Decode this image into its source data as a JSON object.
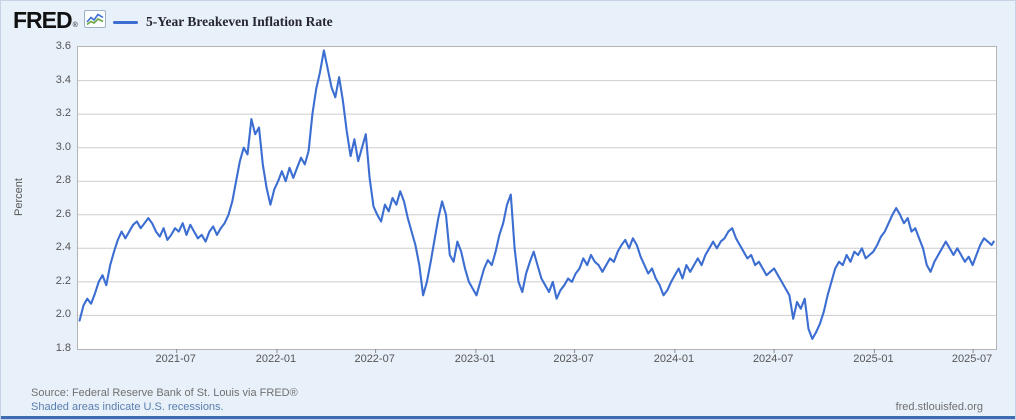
{
  "header": {
    "logo_text": "FRED",
    "registered_mark": "®",
    "legend": {
      "label": "5-Year Breakeven Inflation Rate"
    }
  },
  "footer": {
    "source_line": "Source: Federal Reserve Bank of St. Louis via FRED®",
    "recessions_note": "Shaded areas indicate U.S. recessions.",
    "site_link": "fred.stlouisfed.org"
  },
  "colors": {
    "line": "#3c6ed2",
    "accent_bar": "#3e6cb0",
    "link": "#5a7fae",
    "chrome_background": "#e8f0fa",
    "gridline": "#cdcdcd",
    "axis_text": "#555555"
  },
  "chart_data": {
    "type": "line",
    "title": "5-Year Breakeven Inflation Rate",
    "ylabel": "Percent",
    "xlabel": "",
    "ylim": [
      1.8,
      3.6
    ],
    "yticks": [
      1.8,
      2.0,
      2.2,
      2.4,
      2.6,
      2.8,
      3.0,
      3.2,
      3.4,
      3.6
    ],
    "xticks": [
      "2021-07",
      "2022-01",
      "2022-07",
      "2023-01",
      "2023-07",
      "2024-01",
      "2024-07",
      "2025-01",
      "2025-07"
    ],
    "x_range": [
      "2021-01-01",
      "2025-08-12"
    ],
    "grid": true,
    "legend_position": "top-left",
    "line_color": "#3c6ed2",
    "series_name": "5-Year Breakeven Inflation Rate",
    "points": [
      [
        "2021-01-04",
        1.97
      ],
      [
        "2021-01-11",
        2.06
      ],
      [
        "2021-01-18",
        2.1
      ],
      [
        "2021-01-25",
        2.07
      ],
      [
        "2021-02-01",
        2.13
      ],
      [
        "2021-02-08",
        2.2
      ],
      [
        "2021-02-15",
        2.24
      ],
      [
        "2021-02-22",
        2.18
      ],
      [
        "2021-03-01",
        2.3
      ],
      [
        "2021-03-08",
        2.38
      ],
      [
        "2021-03-15",
        2.45
      ],
      [
        "2021-03-22",
        2.5
      ],
      [
        "2021-03-29",
        2.46
      ],
      [
        "2021-04-05",
        2.5
      ],
      [
        "2021-04-12",
        2.54
      ],
      [
        "2021-04-19",
        2.56
      ],
      [
        "2021-04-26",
        2.52
      ],
      [
        "2021-05-03",
        2.55
      ],
      [
        "2021-05-10",
        2.58
      ],
      [
        "2021-05-17",
        2.55
      ],
      [
        "2021-05-24",
        2.5
      ],
      [
        "2021-05-31",
        2.47
      ],
      [
        "2021-06-07",
        2.52
      ],
      [
        "2021-06-14",
        2.45
      ],
      [
        "2021-06-21",
        2.48
      ],
      [
        "2021-06-28",
        2.52
      ],
      [
        "2021-07-05",
        2.5
      ],
      [
        "2021-07-12",
        2.55
      ],
      [
        "2021-07-19",
        2.48
      ],
      [
        "2021-07-26",
        2.54
      ],
      [
        "2021-08-02",
        2.5
      ],
      [
        "2021-08-09",
        2.46
      ],
      [
        "2021-08-16",
        2.48
      ],
      [
        "2021-08-23",
        2.44
      ],
      [
        "2021-08-30",
        2.5
      ],
      [
        "2021-09-06",
        2.53
      ],
      [
        "2021-09-13",
        2.48
      ],
      [
        "2021-09-20",
        2.52
      ],
      [
        "2021-09-27",
        2.55
      ],
      [
        "2021-10-04",
        2.6
      ],
      [
        "2021-10-11",
        2.68
      ],
      [
        "2021-10-18",
        2.8
      ],
      [
        "2021-10-25",
        2.92
      ],
      [
        "2021-11-01",
        3.0
      ],
      [
        "2021-11-08",
        2.96
      ],
      [
        "2021-11-15",
        3.17
      ],
      [
        "2021-11-22",
        3.08
      ],
      [
        "2021-11-29",
        3.12
      ],
      [
        "2021-12-06",
        2.9
      ],
      [
        "2021-12-13",
        2.76
      ],
      [
        "2021-12-20",
        2.66
      ],
      [
        "2021-12-27",
        2.75
      ],
      [
        "2022-01-03",
        2.8
      ],
      [
        "2022-01-10",
        2.86
      ],
      [
        "2022-01-17",
        2.8
      ],
      [
        "2022-01-24",
        2.88
      ],
      [
        "2022-01-31",
        2.82
      ],
      [
        "2022-02-07",
        2.88
      ],
      [
        "2022-02-14",
        2.94
      ],
      [
        "2022-02-21",
        2.9
      ],
      [
        "2022-02-28",
        2.98
      ],
      [
        "2022-03-07",
        3.2
      ],
      [
        "2022-03-14",
        3.35
      ],
      [
        "2022-03-21",
        3.45
      ],
      [
        "2022-03-28",
        3.58
      ],
      [
        "2022-04-04",
        3.47
      ],
      [
        "2022-04-11",
        3.36
      ],
      [
        "2022-04-18",
        3.3
      ],
      [
        "2022-04-25",
        3.42
      ],
      [
        "2022-05-02",
        3.28
      ],
      [
        "2022-05-09",
        3.1
      ],
      [
        "2022-05-16",
        2.95
      ],
      [
        "2022-05-23",
        3.05
      ],
      [
        "2022-05-30",
        2.92
      ],
      [
        "2022-06-06",
        3.0
      ],
      [
        "2022-06-13",
        3.08
      ],
      [
        "2022-06-20",
        2.82
      ],
      [
        "2022-06-27",
        2.65
      ],
      [
        "2022-07-04",
        2.6
      ],
      [
        "2022-07-11",
        2.56
      ],
      [
        "2022-07-18",
        2.66
      ],
      [
        "2022-07-25",
        2.62
      ],
      [
        "2022-08-01",
        2.7
      ],
      [
        "2022-08-08",
        2.66
      ],
      [
        "2022-08-15",
        2.74
      ],
      [
        "2022-08-22",
        2.68
      ],
      [
        "2022-08-29",
        2.58
      ],
      [
        "2022-09-05",
        2.5
      ],
      [
        "2022-09-12",
        2.42
      ],
      [
        "2022-09-19",
        2.3
      ],
      [
        "2022-09-26",
        2.12
      ],
      [
        "2022-10-03",
        2.2
      ],
      [
        "2022-10-10",
        2.32
      ],
      [
        "2022-10-17",
        2.45
      ],
      [
        "2022-10-24",
        2.58
      ],
      [
        "2022-10-31",
        2.68
      ],
      [
        "2022-11-07",
        2.6
      ],
      [
        "2022-11-14",
        2.36
      ],
      [
        "2022-11-21",
        2.32
      ],
      [
        "2022-11-28",
        2.44
      ],
      [
        "2022-12-05",
        2.38
      ],
      [
        "2022-12-12",
        2.28
      ],
      [
        "2022-12-19",
        2.2
      ],
      [
        "2022-12-26",
        2.16
      ],
      [
        "2023-01-02",
        2.12
      ],
      [
        "2023-01-09",
        2.2
      ],
      [
        "2023-01-16",
        2.28
      ],
      [
        "2023-01-23",
        2.33
      ],
      [
        "2023-01-30",
        2.3
      ],
      [
        "2023-02-06",
        2.38
      ],
      [
        "2023-02-13",
        2.48
      ],
      [
        "2023-02-20",
        2.55
      ],
      [
        "2023-02-27",
        2.66
      ],
      [
        "2023-03-06",
        2.72
      ],
      [
        "2023-03-13",
        2.4
      ],
      [
        "2023-03-20",
        2.2
      ],
      [
        "2023-03-27",
        2.14
      ],
      [
        "2023-04-03",
        2.25
      ],
      [
        "2023-04-10",
        2.32
      ],
      [
        "2023-04-17",
        2.38
      ],
      [
        "2023-04-24",
        2.3
      ],
      [
        "2023-05-01",
        2.22
      ],
      [
        "2023-05-08",
        2.18
      ],
      [
        "2023-05-15",
        2.14
      ],
      [
        "2023-05-22",
        2.2
      ],
      [
        "2023-05-29",
        2.1
      ],
      [
        "2023-06-05",
        2.15
      ],
      [
        "2023-06-12",
        2.18
      ],
      [
        "2023-06-19",
        2.22
      ],
      [
        "2023-06-26",
        2.2
      ],
      [
        "2023-07-03",
        2.25
      ],
      [
        "2023-07-10",
        2.28
      ],
      [
        "2023-07-17",
        2.34
      ],
      [
        "2023-07-24",
        2.3
      ],
      [
        "2023-07-31",
        2.36
      ],
      [
        "2023-08-07",
        2.32
      ],
      [
        "2023-08-14",
        2.3
      ],
      [
        "2023-08-21",
        2.26
      ],
      [
        "2023-08-28",
        2.3
      ],
      [
        "2023-09-04",
        2.34
      ],
      [
        "2023-09-11",
        2.32
      ],
      [
        "2023-09-18",
        2.38
      ],
      [
        "2023-09-25",
        2.42
      ],
      [
        "2023-10-02",
        2.45
      ],
      [
        "2023-10-09",
        2.4
      ],
      [
        "2023-10-16",
        2.46
      ],
      [
        "2023-10-23",
        2.42
      ],
      [
        "2023-10-30",
        2.35
      ],
      [
        "2023-11-06",
        2.3
      ],
      [
        "2023-11-13",
        2.25
      ],
      [
        "2023-11-20",
        2.28
      ],
      [
        "2023-11-27",
        2.22
      ],
      [
        "2023-12-04",
        2.18
      ],
      [
        "2023-12-11",
        2.12
      ],
      [
        "2023-12-18",
        2.15
      ],
      [
        "2023-12-25",
        2.2
      ],
      [
        "2024-01-01",
        2.24
      ],
      [
        "2024-01-08",
        2.28
      ],
      [
        "2024-01-15",
        2.22
      ],
      [
        "2024-01-22",
        2.3
      ],
      [
        "2024-01-29",
        2.26
      ],
      [
        "2024-02-05",
        2.3
      ],
      [
        "2024-02-12",
        2.34
      ],
      [
        "2024-02-19",
        2.3
      ],
      [
        "2024-02-26",
        2.36
      ],
      [
        "2024-03-04",
        2.4
      ],
      [
        "2024-03-11",
        2.44
      ],
      [
        "2024-03-18",
        2.4
      ],
      [
        "2024-03-25",
        2.44
      ],
      [
        "2024-04-01",
        2.46
      ],
      [
        "2024-04-08",
        2.5
      ],
      [
        "2024-04-15",
        2.52
      ],
      [
        "2024-04-22",
        2.46
      ],
      [
        "2024-04-29",
        2.42
      ],
      [
        "2024-05-06",
        2.38
      ],
      [
        "2024-05-13",
        2.34
      ],
      [
        "2024-05-20",
        2.36
      ],
      [
        "2024-05-27",
        2.3
      ],
      [
        "2024-06-03",
        2.32
      ],
      [
        "2024-06-10",
        2.28
      ],
      [
        "2024-06-17",
        2.24
      ],
      [
        "2024-06-24",
        2.26
      ],
      [
        "2024-07-01",
        2.28
      ],
      [
        "2024-07-08",
        2.24
      ],
      [
        "2024-07-15",
        2.2
      ],
      [
        "2024-07-22",
        2.16
      ],
      [
        "2024-07-29",
        2.12
      ],
      [
        "2024-08-05",
        1.98
      ],
      [
        "2024-08-12",
        2.08
      ],
      [
        "2024-08-19",
        2.04
      ],
      [
        "2024-08-26",
        2.1
      ],
      [
        "2024-09-02",
        1.92
      ],
      [
        "2024-09-09",
        1.86
      ],
      [
        "2024-09-16",
        1.9
      ],
      [
        "2024-09-23",
        1.95
      ],
      [
        "2024-09-30",
        2.02
      ],
      [
        "2024-10-07",
        2.12
      ],
      [
        "2024-10-14",
        2.2
      ],
      [
        "2024-10-21",
        2.28
      ],
      [
        "2024-10-28",
        2.32
      ],
      [
        "2024-11-04",
        2.3
      ],
      [
        "2024-11-11",
        2.36
      ],
      [
        "2024-11-18",
        2.32
      ],
      [
        "2024-11-25",
        2.38
      ],
      [
        "2024-12-02",
        2.36
      ],
      [
        "2024-12-09",
        2.4
      ],
      [
        "2024-12-16",
        2.34
      ],
      [
        "2024-12-23",
        2.36
      ],
      [
        "2024-12-30",
        2.38
      ],
      [
        "2025-01-06",
        2.42
      ],
      [
        "2025-01-13",
        2.47
      ],
      [
        "2025-01-20",
        2.5
      ],
      [
        "2025-01-27",
        2.55
      ],
      [
        "2025-02-03",
        2.6
      ],
      [
        "2025-02-10",
        2.64
      ],
      [
        "2025-02-17",
        2.6
      ],
      [
        "2025-02-24",
        2.55
      ],
      [
        "2025-03-03",
        2.58
      ],
      [
        "2025-03-10",
        2.5
      ],
      [
        "2025-03-17",
        2.52
      ],
      [
        "2025-03-24",
        2.46
      ],
      [
        "2025-03-31",
        2.4
      ],
      [
        "2025-04-07",
        2.3
      ],
      [
        "2025-04-14",
        2.26
      ],
      [
        "2025-04-21",
        2.32
      ],
      [
        "2025-04-28",
        2.36
      ],
      [
        "2025-05-05",
        2.4
      ],
      [
        "2025-05-12",
        2.44
      ],
      [
        "2025-05-19",
        2.4
      ],
      [
        "2025-05-26",
        2.36
      ],
      [
        "2025-06-02",
        2.4
      ],
      [
        "2025-06-09",
        2.36
      ],
      [
        "2025-06-16",
        2.32
      ],
      [
        "2025-06-23",
        2.35
      ],
      [
        "2025-06-30",
        2.3
      ],
      [
        "2025-07-07",
        2.36
      ],
      [
        "2025-07-14",
        2.42
      ],
      [
        "2025-07-21",
        2.46
      ],
      [
        "2025-07-28",
        2.44
      ],
      [
        "2025-08-04",
        2.42
      ],
      [
        "2025-08-08",
        2.44
      ]
    ]
  }
}
